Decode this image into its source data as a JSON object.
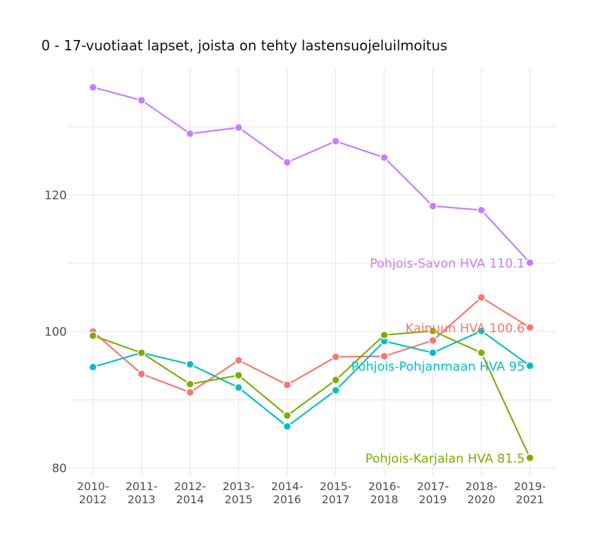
{
  "chart_data": {
    "type": "line",
    "title": "0 - 17-vuotiaat lapset, joista on tehty lastensuojeluilmoitus",
    "xlabel": "",
    "ylabel": "",
    "categories": [
      "2010-\n2012",
      "2011-\n2013",
      "2012-\n2014",
      "2013-\n2015",
      "2014-\n2016",
      "2015-\n2017",
      "2016-\n2018",
      "2017-\n2019",
      "2018-\n2020",
      "2019-\n2021"
    ],
    "y_ticks": [
      80,
      100,
      120
    ],
    "ylim": [
      79,
      137.5
    ],
    "grid": true,
    "legend": "none",
    "series": [
      {
        "name": "Pohjois-Savon HVA",
        "end_label": "Pohjois-Savon HVA 110.1",
        "color": "#C77CFF",
        "values": [
          135.8,
          133.9,
          129,
          129.9,
          124.8,
          127.9,
          125.5,
          118.4,
          117.8,
          110.1
        ]
      },
      {
        "name": "Kainuun HVA",
        "end_label": "Kainuun HVA 100.6",
        "color": "#F8766D",
        "values": [
          100,
          93.8,
          91.1,
          95.8,
          92.2,
          96.3,
          96.4,
          98.7,
          105,
          100.6
        ]
      },
      {
        "name": "Pohjois-Pohjanmaan HVA",
        "end_label": "Pohjois-Pohjanmaan HVA 95",
        "color": "#00BFC4",
        "values": [
          94.8,
          96.9,
          95.2,
          91.8,
          86.1,
          91.4,
          98.6,
          96.9,
          100.1,
          95
        ]
      },
      {
        "name": "Pohjois-Karjalan HVA",
        "end_label": "Pohjois-Karjalan HVA 81.5",
        "color": "#7CAE00",
        "values": [
          99.4,
          96.9,
          92.3,
          93.6,
          87.7,
          92.9,
          99.5,
          100.1,
          96.9,
          81.5
        ]
      }
    ]
  }
}
